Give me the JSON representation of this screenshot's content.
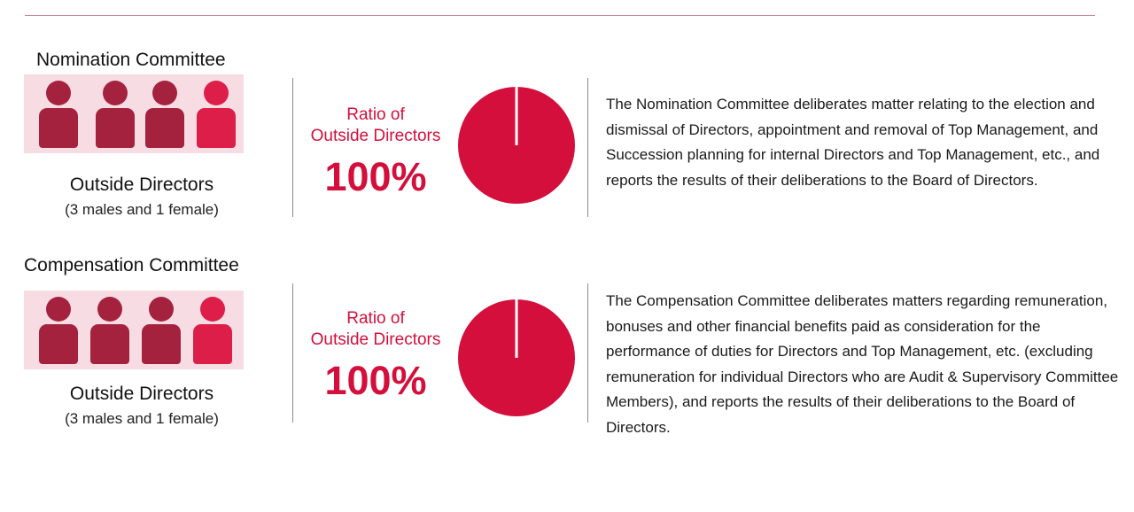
{
  "committees": [
    {
      "title": "Nomination Committee",
      "members": [
        {
          "gender": "male"
        },
        {
          "gender": "male"
        },
        {
          "gender": "male"
        },
        {
          "gender": "female"
        }
      ],
      "member_label": "Outside Directors",
      "member_breakdown": "(3 males and 1 female)",
      "ratio_label_line1": "Ratio of",
      "ratio_label_line2": "Outside Directors",
      "ratio_value": "100%",
      "ratio_fraction": 1.0,
      "description": "The Nomination Committee deliberates matter relating to the election and dismissal of Directors, appointment and removal of Top Management, and Succession planning for internal Directors and Top Management, etc., and reports the results of their deliberations to the Board of Directors."
    },
    {
      "title": "Compensation Committee",
      "members": [
        {
          "gender": "male"
        },
        {
          "gender": "male"
        },
        {
          "gender": "male"
        },
        {
          "gender": "female"
        }
      ],
      "member_label": "Outside Directors",
      "member_breakdown": "(3 males and 1 female)",
      "ratio_label_line1": "Ratio of",
      "ratio_label_line2": "Outside Directors",
      "ratio_value": "100%",
      "ratio_fraction": 1.0,
      "description": "The Compensation Committee deliberates matters regarding remuneration, bonuses and other financial benefits paid as consideration for the performance of duties for Directors and Top Management, etc. (excluding remuneration for individual Directors who are Audit & Supervisory Committee Members), and reports the results of their deliberations to the Board of Directors."
    }
  ],
  "colors": {
    "accent": "#d40f3c",
    "male_icon": "#a5223f",
    "female_icon": "#dc1e48",
    "icon_background": "#f7dde3",
    "divider": "#8c8c8c",
    "top_rule": "#c98a93"
  }
}
